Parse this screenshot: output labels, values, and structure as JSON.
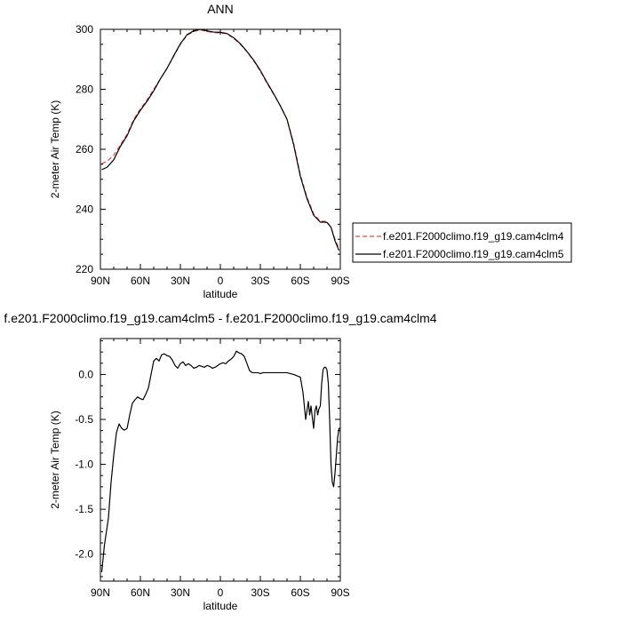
{
  "chart_data": [
    {
      "type": "line",
      "title": "ANN",
      "xlabel": "latitude",
      "ylabel": "2-meter Air Temp (K)",
      "xlim": [
        90,
        -90
      ],
      "ylim": [
        220,
        300
      ],
      "x_ticks": [
        90,
        60,
        30,
        0,
        -30,
        -60,
        -90
      ],
      "x_tick_labels": [
        "90N",
        "60N",
        "30N",
        "0",
        "30S",
        "60S",
        "90S"
      ],
      "y_ticks": [
        220,
        240,
        260,
        280,
        300
      ],
      "y_tick_labels": [
        "220",
        "240",
        "260",
        "280",
        "300"
      ],
      "grid": false,
      "legend_position": "right",
      "series": [
        {
          "name": "f.e201.F2000climo.f19_g19.cam4clm4",
          "color": "#e8474b",
          "dash": "dashed",
          "x": [
            89,
            85,
            80,
            75,
            70,
            65,
            60,
            55,
            50,
            45,
            40,
            35,
            30,
            25,
            20,
            15,
            10,
            5,
            0,
            -5,
            -10,
            -15,
            -20,
            -25,
            -30,
            -35,
            -40,
            -45,
            -50,
            -55,
            -60,
            -65,
            -70,
            -75,
            -78,
            -80,
            -83,
            -86,
            -89
          ],
          "y": [
            255.2,
            256,
            258,
            261.5,
            265,
            270,
            273.5,
            276.5,
            280,
            283.5,
            287,
            291,
            295,
            298,
            299.3,
            299.8,
            299.3,
            298.9,
            298.8,
            298.5,
            297,
            295,
            292.5,
            289.5,
            286,
            282,
            278.3,
            274.5,
            270,
            262,
            251.5,
            244,
            238.5,
            236,
            236,
            235.8,
            234,
            230,
            227
          ]
        },
        {
          "name": "f.e201.F2000climo.f19_g19.cam4clm5",
          "color": "#000000",
          "dash": "solid",
          "x": [
            89,
            85,
            80,
            75,
            70,
            65,
            60,
            55,
            50,
            45,
            40,
            35,
            30,
            25,
            20,
            15,
            10,
            5,
            0,
            -5,
            -10,
            -15,
            -20,
            -25,
            -30,
            -35,
            -40,
            -45,
            -50,
            -55,
            -60,
            -65,
            -70,
            -75,
            -78,
            -80,
            -83,
            -86,
            -89
          ],
          "y": [
            253.2,
            254,
            256.5,
            261,
            264.5,
            269.5,
            273,
            276,
            279.5,
            283.5,
            287,
            291.2,
            295.2,
            298.2,
            299.5,
            300,
            299.5,
            299.1,
            299,
            298.6,
            297.2,
            295.2,
            292.6,
            289.7,
            286.3,
            282.3,
            278.5,
            274.5,
            270,
            261.5,
            251,
            243.5,
            238,
            235.7,
            235.7,
            235.6,
            234,
            229.5,
            226.2
          ]
        }
      ]
    },
    {
      "type": "line",
      "title": "f.e201.F2000climo.f19_g19.cam4clm5 - f.e201.F2000climo.f19_g19.cam4clm4",
      "xlabel": "latitude",
      "ylabel": "2-meter Air Temp (K)",
      "xlim": [
        90,
        -90
      ],
      "ylim": [
        -2.3,
        0.4
      ],
      "x_ticks": [
        90,
        60,
        30,
        0,
        -30,
        -60,
        -90
      ],
      "x_tick_labels": [
        "90N",
        "60N",
        "30N",
        "0",
        "30S",
        "60S",
        "90S"
      ],
      "y_ticks": [
        -2.0,
        -1.5,
        -1.0,
        -0.5,
        0.0
      ],
      "y_tick_labels": [
        "-2.0",
        "-1.5",
        "-1.0",
        "-0.5",
        "0.0"
      ],
      "grid": false,
      "series": [
        {
          "color": "#000000",
          "dash": "solid",
          "x": [
            89,
            87,
            84,
            82,
            80,
            78,
            76,
            74,
            72,
            70,
            68,
            66,
            64,
            62,
            60,
            58,
            56,
            54,
            52,
            50,
            48,
            46,
            44,
            42,
            40,
            38,
            36,
            34,
            32,
            30,
            28,
            26,
            24,
            22,
            20,
            18,
            16,
            14,
            12,
            10,
            8,
            6,
            4,
            2,
            0,
            -2,
            -4,
            -6,
            -8,
            -10,
            -12,
            -14,
            -16,
            -18,
            -20,
            -22,
            -24,
            -26,
            -28,
            -30,
            -32,
            -34,
            -36,
            -38,
            -40,
            -45,
            -50,
            -55,
            -60,
            -62,
            -64,
            -66,
            -67,
            -68,
            -69,
            -70,
            -71,
            -72,
            -73,
            -74,
            -75,
            -76,
            -77,
            -78,
            -79,
            -80,
            -81,
            -82,
            -83,
            -84,
            -85,
            -86,
            -87,
            -88,
            -89,
            -90
          ],
          "y": [
            -2.2,
            -1.9,
            -1.6,
            -1.2,
            -0.9,
            -0.65,
            -0.55,
            -0.6,
            -0.62,
            -0.6,
            -0.45,
            -0.32,
            -0.28,
            -0.25,
            -0.27,
            -0.28,
            -0.22,
            -0.15,
            0.0,
            0.15,
            0.18,
            0.15,
            0.22,
            0.23,
            0.21,
            0.2,
            0.16,
            0.1,
            0.07,
            0.12,
            0.14,
            0.1,
            0.12,
            0.1,
            0.07,
            0.08,
            0.1,
            0.09,
            0.08,
            0.1,
            0.09,
            0.07,
            0.08,
            0.1,
            0.12,
            0.13,
            0.12,
            0.15,
            0.17,
            0.2,
            0.26,
            0.24,
            0.23,
            0.2,
            0.12,
            0.04,
            0.02,
            0.02,
            0.02,
            0.01,
            0.02,
            0.02,
            0.02,
            0.02,
            0.02,
            0.02,
            0.02,
            0.0,
            -0.03,
            -0.2,
            -0.5,
            -0.3,
            -0.45,
            -0.35,
            -0.48,
            -0.6,
            -0.4,
            -0.35,
            -0.45,
            -0.38,
            -0.35,
            -0.1,
            0.05,
            0.08,
            0.08,
            0.05,
            -0.1,
            -0.5,
            -1.0,
            -1.2,
            -1.25,
            -1.1,
            -0.9,
            -0.7,
            -0.6,
            -0.6
          ]
        }
      ]
    }
  ]
}
